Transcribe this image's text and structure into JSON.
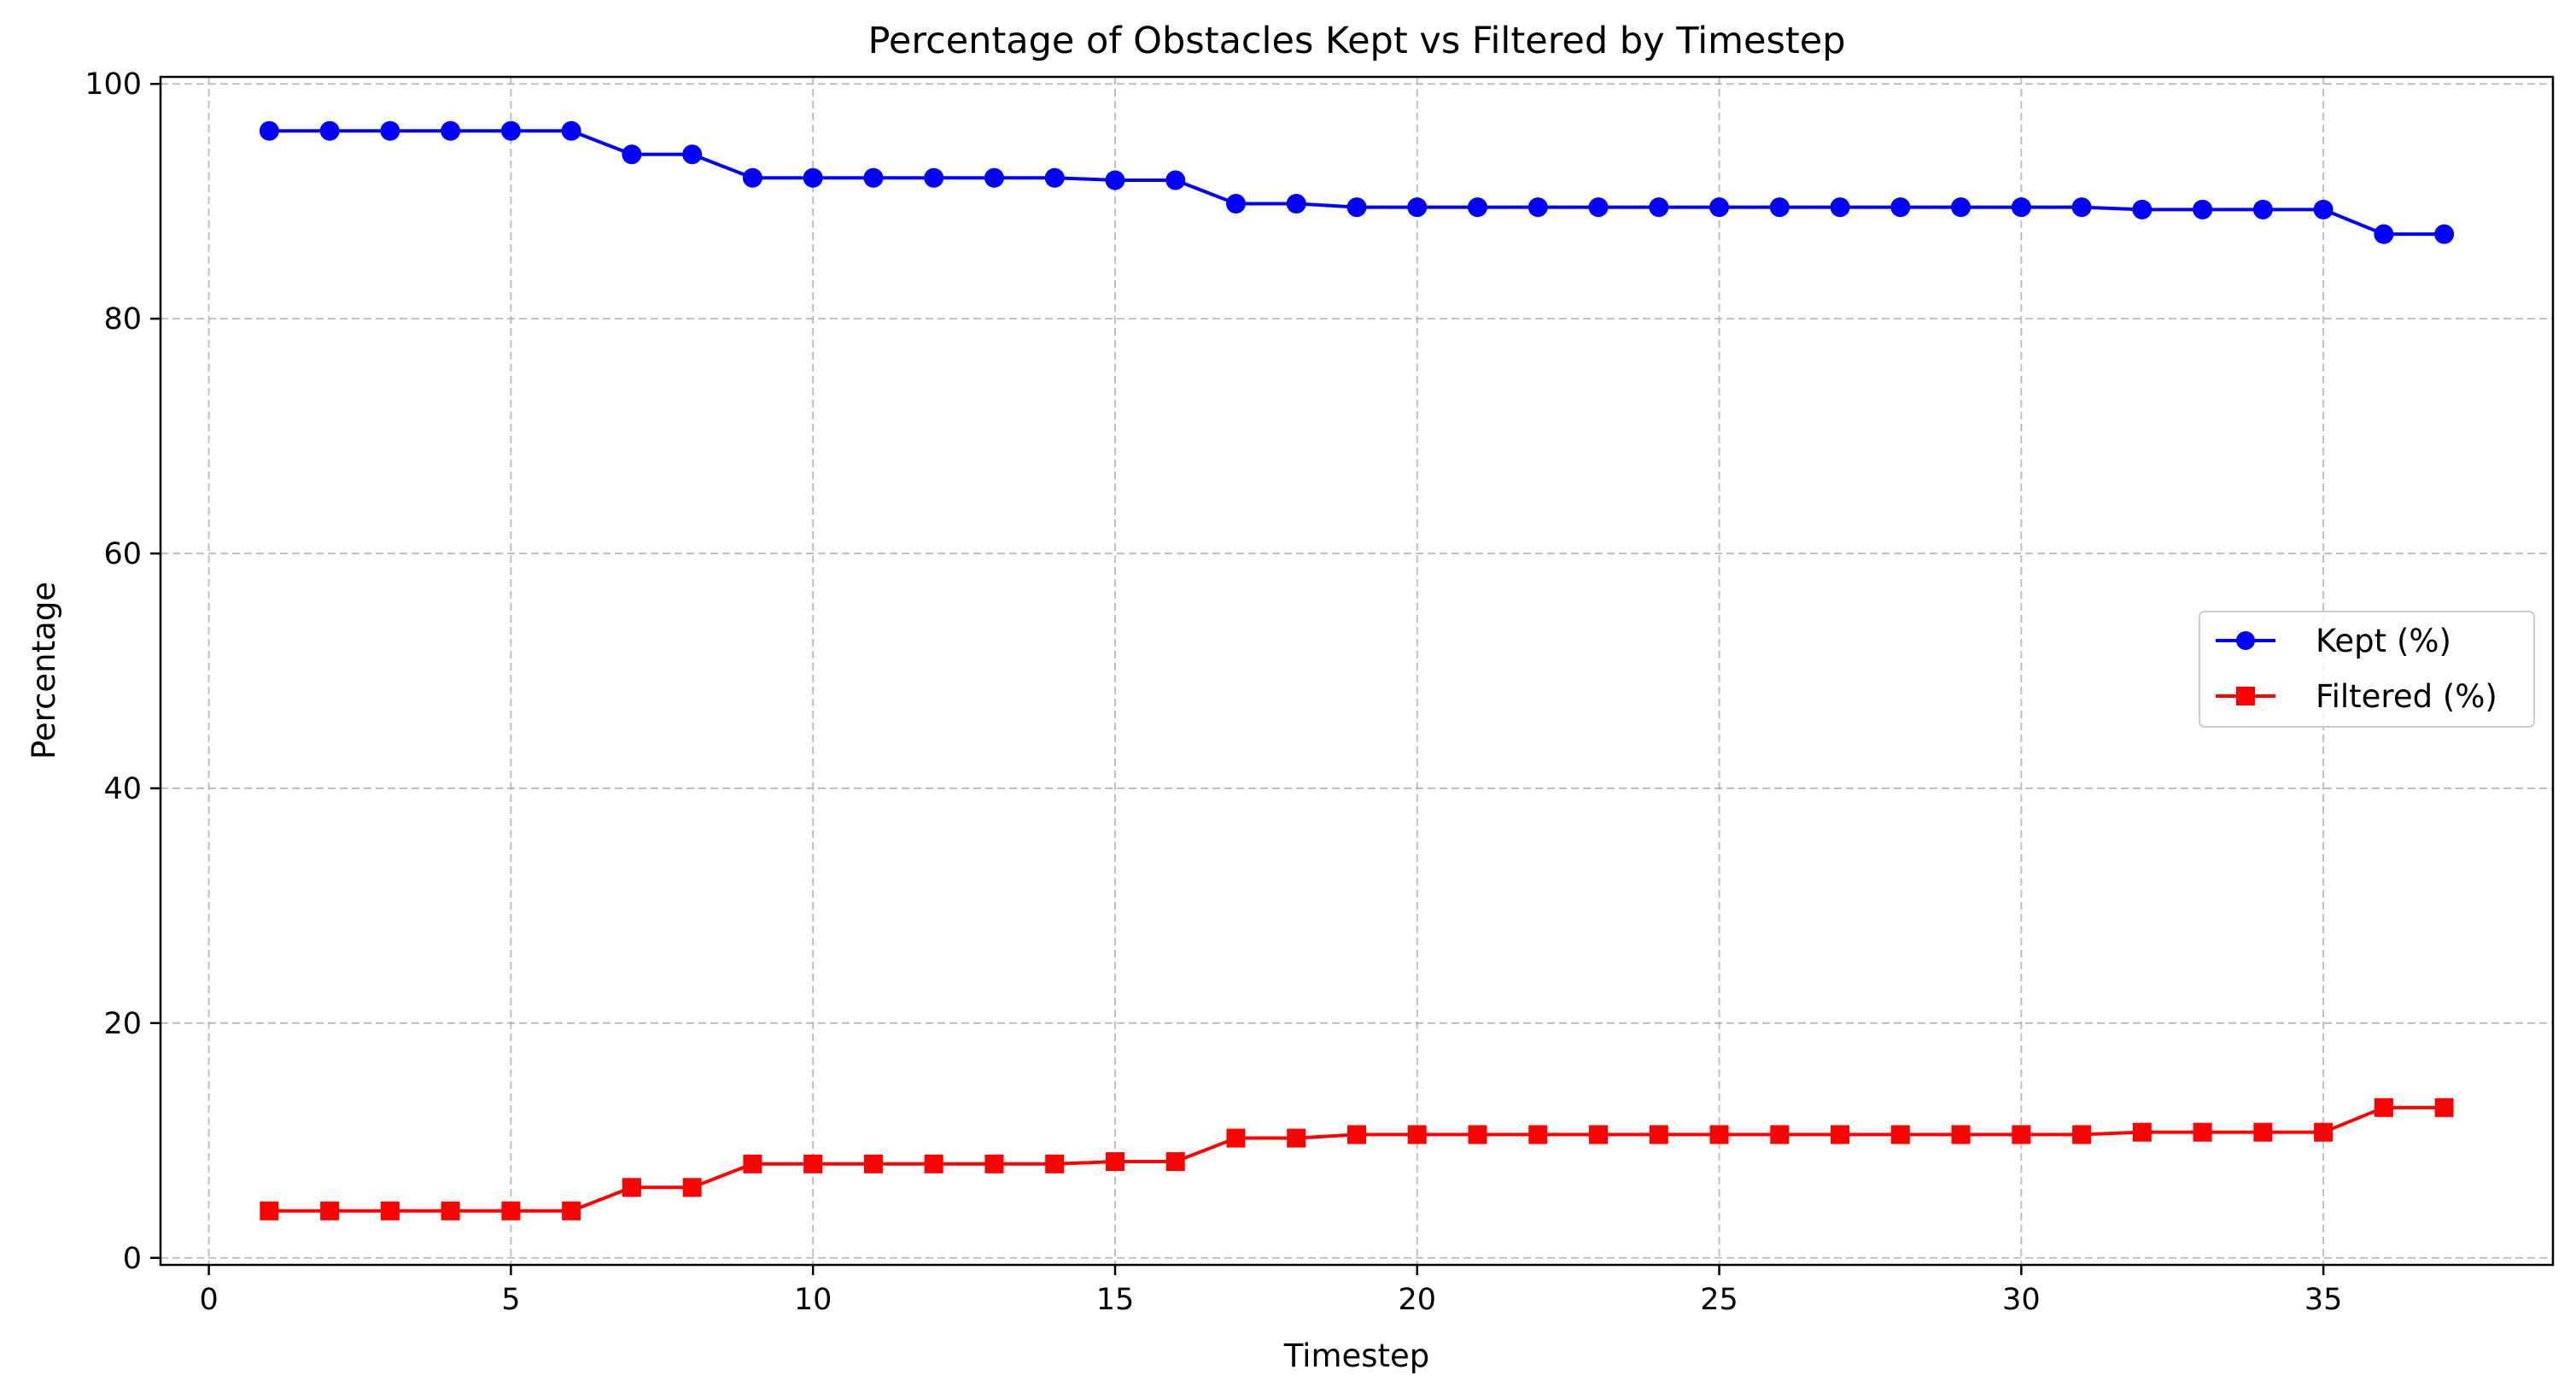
{
  "chart_data": {
    "type": "line",
    "title": "Percentage of Obstacles Kept vs Filtered by Timestep",
    "xlabel": "Timestep",
    "ylabel": "Percentage",
    "xlim": [
      -0.8,
      38.8
    ],
    "ylim": [
      -0.6,
      100.6
    ],
    "xticks": [
      0,
      5,
      10,
      15,
      20,
      25,
      30,
      35
    ],
    "yticks": [
      0,
      20,
      40,
      60,
      80,
      100
    ],
    "grid": true,
    "legend_position": "center-right",
    "x": [
      1,
      2,
      3,
      4,
      5,
      6,
      7,
      8,
      9,
      10,
      11,
      12,
      13,
      14,
      15,
      16,
      17,
      18,
      19,
      20,
      21,
      22,
      23,
      24,
      25,
      26,
      27,
      28,
      29,
      30,
      31,
      32,
      33,
      34,
      35,
      36,
      37
    ],
    "series": [
      {
        "name": "Kept (%)",
        "color": "#0000ff",
        "marker": "circle",
        "values": [
          96,
          96,
          96,
          96,
          96,
          96,
          94,
          94,
          92,
          92,
          92,
          92,
          92,
          92,
          91.8,
          91.8,
          89.8,
          89.8,
          89.5,
          89.5,
          89.5,
          89.5,
          89.5,
          89.5,
          89.5,
          89.5,
          89.5,
          89.5,
          89.5,
          89.5,
          89.5,
          89.3,
          89.3,
          89.3,
          89.3,
          87.2,
          87.2
        ]
      },
      {
        "name": "Filtered (%)",
        "color": "#ff0000",
        "marker": "square",
        "values": [
          4,
          4,
          4,
          4,
          4,
          4,
          6,
          6,
          8,
          8,
          8,
          8,
          8,
          8,
          8.2,
          8.2,
          10.2,
          10.2,
          10.5,
          10.5,
          10.5,
          10.5,
          10.5,
          10.5,
          10.5,
          10.5,
          10.5,
          10.5,
          10.5,
          10.5,
          10.5,
          10.7,
          10.7,
          10.7,
          10.7,
          12.8,
          12.8
        ]
      }
    ]
  }
}
